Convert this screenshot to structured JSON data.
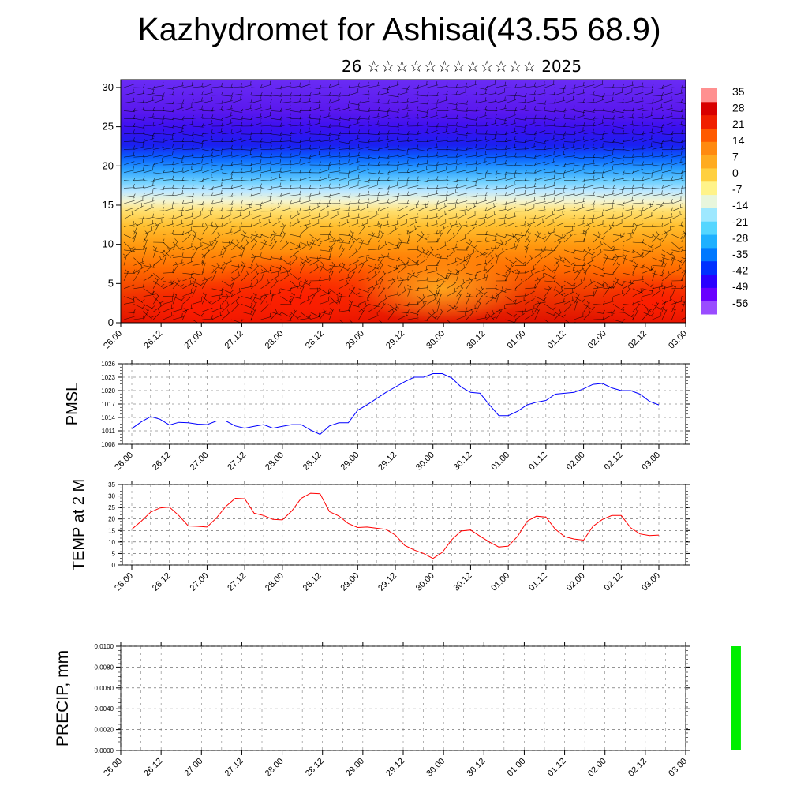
{
  "title": "Kazhydromet for Ashisai(43.55 68.9)",
  "subtitle": "26 ☆☆☆☆☆☆☆☆☆☆☆☆ 2025",
  "colors": {
    "pmsl_line": "#0000ff",
    "temp_line": "#ff0000",
    "precip_bar": "#00ee00",
    "colorbar": [
      "#9a4cff",
      "#6a00ff",
      "#2a00ff",
      "#0030ff",
      "#0078ff",
      "#1fb0ff",
      "#55d6ff",
      "#9ee8ff",
      "#e8f6dc",
      "#fff38a",
      "#ffd040",
      "#ffab20",
      "#ff8a10",
      "#ff5a00",
      "#f02000",
      "#d80000",
      "#ff9090"
    ]
  },
  "chart_data": [
    {
      "type": "heatmap",
      "name": "cross-section",
      "x_tick_labels": [
        "26.00",
        "26.12",
        "27.00",
        "27.12",
        "28.00",
        "28.12",
        "29.00",
        "29.12",
        "30.00",
        "30.12",
        "01.00",
        "01.12",
        "02.00",
        "02.12",
        "03.00"
      ],
      "y_tick_labels": [
        "0",
        "5",
        "10",
        "15",
        "20",
        "25",
        "30"
      ],
      "ylim": [
        0,
        31
      ],
      "colorbar_labels": [
        "35",
        "28",
        "21",
        "14",
        "7",
        "0",
        "-7",
        "-14",
        "-21",
        "-28",
        "-35",
        "-42",
        "-49",
        "-56"
      ]
    },
    {
      "type": "line",
      "ylabel": "PMSL",
      "ylim": [
        1008,
        1026
      ],
      "y_tick_labels": [
        "1026",
        "1023",
        "1020",
        "1017",
        "1014",
        "1011",
        "1008"
      ],
      "x_tick_labels": [
        "26.00",
        "26.12",
        "27.00",
        "27.12",
        "28.00",
        "28.12",
        "29.00",
        "29.12",
        "30.00",
        "30.12",
        "01.00",
        "01.12",
        "02.00",
        "02.12",
        "03.00"
      ],
      "series": [
        {
          "values": [
            1011.5,
            1013,
            1014.2,
            1013.6,
            1012.3,
            1012.9,
            1012.8,
            1012.5,
            1012.4,
            1013.2,
            1013.2,
            1012.1,
            1011.6,
            1012,
            1012.4,
            1011.6,
            1012,
            1012.4,
            1012.4,
            1011.2,
            1010.2,
            1012.1,
            1012.8,
            1012.8,
            1015.6,
            1016.8,
            1018.2,
            1019.6,
            1020.8,
            1022,
            1023,
            1023,
            1023.8,
            1023.8,
            1022.8,
            1020.8,
            1019.6,
            1019.4,
            1016.8,
            1014.4,
            1014.4,
            1015.4,
            1016.8,
            1017.4,
            1017.8,
            1019.2,
            1019.4,
            1019.6,
            1020.4,
            1021.4,
            1021.6,
            1020.6,
            1020,
            1020,
            1019.2,
            1017.6,
            1016.8
          ]
        }
      ]
    },
    {
      "type": "line",
      "ylabel": "TEMP at 2 M",
      "ylim": [
        0,
        35
      ],
      "y_tick_labels": [
        "35",
        "30",
        "25",
        "20",
        "15",
        "10",
        "5",
        "0"
      ],
      "x_tick_labels": [
        "26.00",
        "26.12",
        "27.00",
        "27.12",
        "28.00",
        "28.12",
        "29.00",
        "29.12",
        "30.00",
        "30.12",
        "01.00",
        "01.12",
        "02.00",
        "02.12",
        "03.00"
      ],
      "series": [
        {
          "values": [
            15.5,
            19,
            23,
            24.8,
            25.2,
            21.5,
            17,
            16.8,
            16.5,
            20.5,
            25.5,
            29,
            28.8,
            22.5,
            21.5,
            19.8,
            19.6,
            23.5,
            29,
            31.2,
            31,
            23.2,
            21.3,
            18,
            16.3,
            16.5,
            16,
            15.5,
            13,
            8.5,
            6.5,
            5,
            2.8,
            5.5,
            11,
            14.8,
            15.2,
            12.5,
            10,
            7.8,
            8.2,
            12.5,
            19,
            21.2,
            20.8,
            15.5,
            12.3,
            11.3,
            10.8,
            16.8,
            19.8,
            21.5,
            21.5,
            16.2,
            13.5,
            12.8,
            13
          ]
        }
      ]
    },
    {
      "type": "bar",
      "ylabel": "PRECIP, mm",
      "ylim": [
        0,
        0.01
      ],
      "y_tick_labels": [
        "0.0100",
        "0.0080",
        "0.0060",
        "0.0040",
        "0.0020",
        "0.0000"
      ],
      "x_tick_labels": [
        "26.00",
        "26.12",
        "27.00",
        "27.12",
        "28.00",
        "28.12",
        "29.00",
        "29.12",
        "30.00",
        "30.12",
        "01.00",
        "01.12",
        "02.00",
        "02.12",
        "03.00"
      ],
      "bars": [
        {
          "x": 30.5,
          "value": 0.01
        }
      ]
    }
  ]
}
